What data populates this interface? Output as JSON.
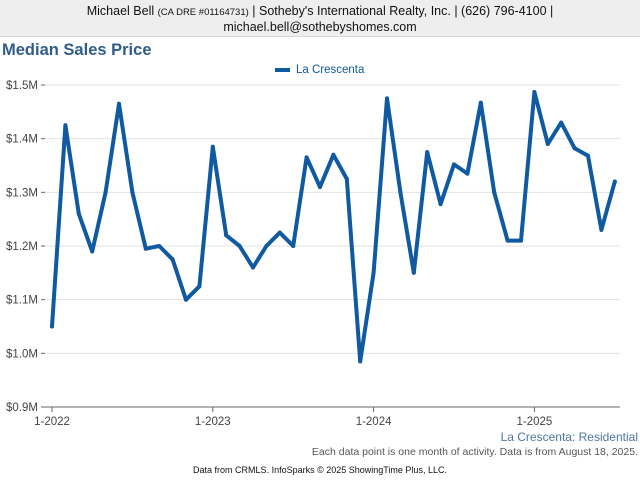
{
  "header": {
    "agent_name": "Michael Bell",
    "agent_license": "(CA DRE #01164731)",
    "agent_rest": "| Sotheby's International Realty, Inc. | (626) 796-4100 |",
    "agent_email": "michael.bell@sothebyshomes.com"
  },
  "footer": {
    "region_label": "La Crescenta: Residential",
    "data_note": "Each data point is one month of activity. Data is from August 18, 2025.",
    "source": "Data from CRMLS. InfoSparks © 2025 ShowingTime Plus, LLC."
  },
  "colors": {
    "series": "#0f5aa0",
    "title": "#2f5d8a",
    "grid": "#e2e2e2",
    "axis": "#666666"
  },
  "chart_data": {
    "type": "line",
    "title": "Median Sales Price",
    "xlabel": "",
    "ylabel": "",
    "ylim": [
      900000,
      1500000
    ],
    "y_ticks": [
      900000,
      1000000,
      1100000,
      1200000,
      1300000,
      1400000,
      1500000
    ],
    "y_tick_labels": [
      "$0.9M",
      "$1.0M",
      "$1.1M",
      "$1.2M",
      "$1.3M",
      "$1.4M",
      "$1.5M"
    ],
    "x_tick_labels": [
      "1-2022",
      "1-2023",
      "1-2024",
      "1-2025"
    ],
    "grid": true,
    "legend_position": "top-center",
    "series": [
      {
        "name": "La Crescenta",
        "x": [
          "2022-01",
          "2022-02",
          "2022-03",
          "2022-04",
          "2022-05",
          "2022-06",
          "2022-07",
          "2022-08",
          "2022-09",
          "2022-10",
          "2022-11",
          "2022-12",
          "2023-01",
          "2023-02",
          "2023-03",
          "2023-04",
          "2023-05",
          "2023-06",
          "2023-07",
          "2023-08",
          "2023-09",
          "2023-10",
          "2023-11",
          "2023-12",
          "2024-01",
          "2024-02",
          "2024-03",
          "2024-04",
          "2024-05",
          "2024-06",
          "2024-07",
          "2024-08",
          "2024-09",
          "2024-10",
          "2024-11",
          "2024-12",
          "2025-01",
          "2025-02",
          "2025-03",
          "2025-04",
          "2025-05",
          "2025-06",
          "2025-07"
        ],
        "values": [
          1050000,
          1425000,
          1260000,
          1190000,
          1300000,
          1465000,
          1300000,
          1195000,
          1200000,
          1175000,
          1100000,
          1125000,
          1385000,
          1220000,
          1200000,
          1160000,
          1200000,
          1225000,
          1200000,
          1365000,
          1310000,
          1370000,
          1325000,
          985000,
          1150000,
          1475000,
          1300000,
          1150000,
          1375000,
          1278000,
          1352000,
          1335000,
          1467000,
          1300000,
          1210000,
          1210000,
          1487000,
          1390000,
          1430000,
          1382000,
          1368000,
          1230000,
          1320000
        ]
      }
    ]
  }
}
